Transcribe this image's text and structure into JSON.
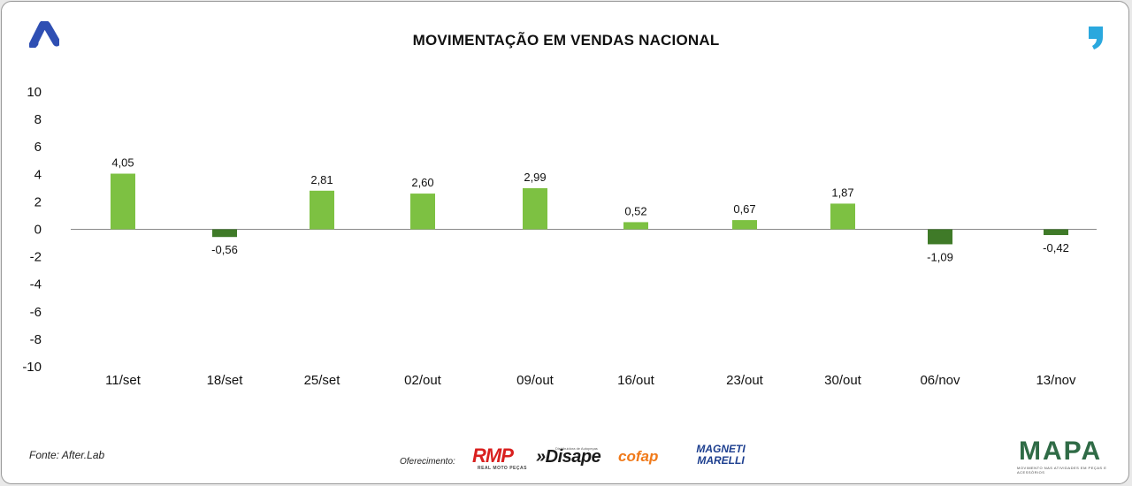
{
  "colors": {
    "positive": "#7dc142",
    "negative": "#3f7a28",
    "zero_line": "#888888",
    "text": "#111111",
    "logo_a": "#2f4fb3",
    "logo_quote": "#2aa8de"
  },
  "chart_data": {
    "type": "bar",
    "title": "MOVIMENTAÇÃO EM VENDAS NACIONAL",
    "categories": [
      "11/set",
      "18/set",
      "25/set",
      "02/out",
      "09/out",
      "16/out",
      "23/out",
      "30/out",
      "06/nov",
      "13/nov"
    ],
    "values": [
      4.05,
      -0.56,
      2.81,
      2.6,
      2.99,
      0.52,
      0.67,
      1.87,
      -1.09,
      -0.42
    ],
    "value_labels": [
      "4,05",
      "-0,56",
      "2,81",
      "2,60",
      "2,99",
      "0,52",
      "0,67",
      "1,87",
      "-1,09",
      "-0,42"
    ],
    "ylim": [
      -10,
      10
    ],
    "yticks": [
      10,
      8,
      6,
      4,
      2,
      0,
      -2,
      -4,
      -6,
      -8,
      -10
    ],
    "xlabel": "",
    "ylabel": "",
    "grid": false,
    "legend": "none"
  },
  "footer": {
    "source": "Fonte: After.Lab",
    "sponsor_label": "Oferecimento:",
    "sponsors": {
      "rmp": "RMP",
      "rmp_sub": "REAL MOTO PEÇAS",
      "disape": "»Disape",
      "disape_sub": "Distribuidora de Autopeças",
      "cofap": "cofap",
      "magneti": "MAGNETI MARELLI"
    },
    "mapa": "MAPA",
    "mapa_sub": "MOVIMENTO NAS ATIVIDADES EM PEÇAS E ACESSÓRIOS"
  },
  "icons": {
    "top_left": "brand-a-icon",
    "top_right": "brand-quote-icon"
  }
}
